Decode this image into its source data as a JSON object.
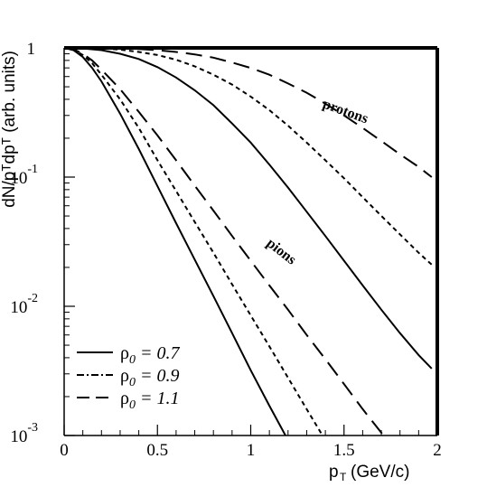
{
  "chart_data": {
    "type": "line",
    "title": "",
    "xlabel_main": "p",
    "xlabel_sub": "T",
    "xlabel_unit": "(GeV/c)",
    "ylabel": "dN/pᵀdpᵀ (arb. units)",
    "xlim": [
      0,
      2
    ],
    "ylim": [
      0.001,
      1
    ],
    "yscale": "log",
    "grid": false,
    "legend_position": "bottom-left",
    "x_ticks": [
      {
        "value": 0,
        "label": "0"
      },
      {
        "value": 0.5,
        "label": "0.5"
      },
      {
        "value": 1,
        "label": "1"
      },
      {
        "value": 1.5,
        "label": "1.5"
      },
      {
        "value": 2,
        "label": "2"
      }
    ],
    "y_ticks": [
      {
        "value": 1,
        "base": "1",
        "exp": ""
      },
      {
        "value": 0.1,
        "base": "10",
        "exp": "-1"
      },
      {
        "value": 0.01,
        "base": "10",
        "exp": "-2"
      },
      {
        "value": 0.001,
        "base": "10",
        "exp": "-3"
      }
    ],
    "legend": [
      {
        "symbol": "ρ",
        "sub": "0",
        "text": " = 0.7",
        "style": "solid"
      },
      {
        "symbol": "ρ",
        "sub": "0",
        "text": " = 0.9",
        "style": "dotted"
      },
      {
        "symbol": "ρ",
        "sub": "0",
        "text": " = 1.1",
        "style": "dashed"
      }
    ],
    "annotations": [
      {
        "text": "protons",
        "x": 1.5,
        "y": 0.3,
        "angle": 20
      },
      {
        "text": "pions",
        "x": 1.15,
        "y": 0.025,
        "angle": 38
      }
    ],
    "series": [
      {
        "group": "protons",
        "rho0": "0.7",
        "style": "solid",
        "x": [
          0,
          0.1,
          0.2,
          0.3,
          0.4,
          0.5,
          0.6,
          0.7,
          0.8,
          0.9,
          1.0,
          1.1,
          1.2,
          1.3,
          1.4,
          1.5,
          1.6,
          1.7,
          1.8,
          1.9,
          1.97
        ],
        "y": [
          1,
          0.99,
          0.96,
          0.9,
          0.82,
          0.71,
          0.59,
          0.47,
          0.36,
          0.26,
          0.185,
          0.125,
          0.083,
          0.054,
          0.035,
          0.0225,
          0.0145,
          0.0094,
          0.0062,
          0.0042,
          0.0033
        ]
      },
      {
        "group": "protons",
        "rho0": "0.9",
        "style": "dotted",
        "x": [
          0,
          0.1,
          0.2,
          0.3,
          0.4,
          0.5,
          0.6,
          0.7,
          0.8,
          0.9,
          1.0,
          1.1,
          1.2,
          1.3,
          1.4,
          1.5,
          1.6,
          1.7,
          1.8,
          1.9,
          1.97
        ],
        "y": [
          1,
          1,
          0.99,
          0.97,
          0.93,
          0.88,
          0.81,
          0.72,
          0.62,
          0.52,
          0.42,
          0.33,
          0.25,
          0.185,
          0.135,
          0.098,
          0.07,
          0.05,
          0.036,
          0.026,
          0.021
        ]
      },
      {
        "group": "protons",
        "rho0": "1.1",
        "style": "dashed",
        "x": [
          0,
          0.1,
          0.2,
          0.3,
          0.4,
          0.5,
          0.6,
          0.7,
          0.8,
          0.9,
          1.0,
          1.1,
          1.2,
          1.3,
          1.4,
          1.5,
          1.6,
          1.7,
          1.8,
          1.9,
          1.97
        ],
        "y": [
          1,
          1,
          1,
          0.99,
          0.98,
          0.96,
          0.93,
          0.89,
          0.84,
          0.77,
          0.7,
          0.62,
          0.53,
          0.45,
          0.37,
          0.3,
          0.24,
          0.19,
          0.15,
          0.12,
          0.1
        ]
      },
      {
        "group": "pions",
        "rho0": "0.7",
        "style": "solid",
        "x": [
          0,
          0.05,
          0.1,
          0.15,
          0.2,
          0.3,
          0.4,
          0.5,
          0.6,
          0.7,
          0.8,
          0.9,
          1.0,
          1.1,
          1.2,
          1.24
        ],
        "y": [
          1,
          0.96,
          0.85,
          0.7,
          0.55,
          0.31,
          0.165,
          0.085,
          0.044,
          0.023,
          0.012,
          0.0062,
          0.0032,
          0.0017,
          0.00092,
          0.00072
        ]
      },
      {
        "group": "pions",
        "rho0": "0.9",
        "style": "dotted",
        "x": [
          0,
          0.05,
          0.1,
          0.15,
          0.2,
          0.3,
          0.4,
          0.5,
          0.6,
          0.7,
          0.8,
          0.9,
          1.0,
          1.1,
          1.2,
          1.3,
          1.4,
          1.46
        ],
        "y": [
          1,
          0.97,
          0.88,
          0.76,
          0.62,
          0.4,
          0.24,
          0.135,
          0.078,
          0.045,
          0.026,
          0.0148,
          0.0085,
          0.0049,
          0.0028,
          0.0016,
          0.00092,
          0.00072
        ]
      },
      {
        "group": "pions",
        "rho0": "1.1",
        "style": "dashed",
        "x": [
          0,
          0.05,
          0.1,
          0.15,
          0.2,
          0.3,
          0.4,
          0.5,
          0.6,
          0.7,
          0.8,
          0.9,
          1.0,
          1.1,
          1.2,
          1.3,
          1.4,
          1.5,
          1.6,
          1.7,
          1.73
        ],
        "y": [
          1,
          0.98,
          0.9,
          0.8,
          0.68,
          0.48,
          0.32,
          0.21,
          0.135,
          0.086,
          0.055,
          0.035,
          0.0225,
          0.0145,
          0.0094,
          0.006,
          0.0039,
          0.0025,
          0.0016,
          0.00105,
          0.00092
        ]
      }
    ]
  }
}
